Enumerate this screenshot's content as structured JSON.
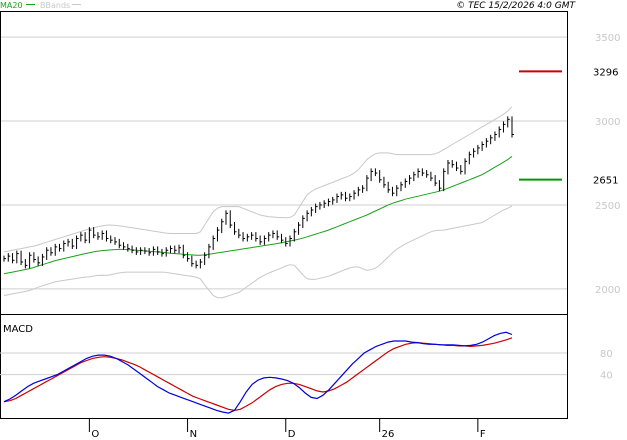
{
  "chart_data": {
    "type": "line",
    "copyright": "© TEC 15/2/2026 4:0 GMT",
    "legend": [
      {
        "name": "MA20",
        "color": "#1aa31a"
      },
      {
        "name": "BBands",
        "color": "#c8c8c8"
      }
    ],
    "price_panel": {
      "ylim": [
        1850,
        3650
      ],
      "y_ticks": [
        2000,
        2500,
        3000,
        3500
      ],
      "y_tick_labels": [
        "2000",
        "2500",
        "3000",
        "3500"
      ],
      "x_tick_labels": [
        "O",
        "N",
        "D",
        "26",
        "F"
      ],
      "x_tick_positions": [
        20,
        43,
        66,
        88,
        111
      ],
      "num_bars": 120,
      "price": [
        2180,
        2195,
        2170,
        2210,
        2160,
        2140,
        2200,
        2175,
        2155,
        2190,
        2230,
        2215,
        2250,
        2240,
        2270,
        2280,
        2255,
        2300,
        2320,
        2290,
        2350,
        2320,
        2310,
        2330,
        2300,
        2290,
        2280,
        2260,
        2250,
        2240,
        2230,
        2220,
        2230,
        2225,
        2215,
        2235,
        2220,
        2210,
        2230,
        2240,
        2230,
        2245,
        2200,
        2180,
        2150,
        2140,
        2160,
        2200,
        2250,
        2300,
        2350,
        2400,
        2450,
        2380,
        2340,
        2320,
        2300,
        2310,
        2320,
        2300,
        2280,
        2300,
        2320,
        2330,
        2310,
        2290,
        2270,
        2300,
        2340,
        2380,
        2420,
        2450,
        2470,
        2490,
        2500,
        2510,
        2520,
        2530,
        2550,
        2560,
        2540,
        2550,
        2570,
        2590,
        2600,
        2660,
        2700,
        2690,
        2650,
        2620,
        2590,
        2570,
        2600,
        2620,
        2640,
        2660,
        2680,
        2700,
        2690,
        2680,
        2660,
        2630,
        2600,
        2700,
        2750,
        2740,
        2720,
        2700,
        2760,
        2800,
        2820,
        2840,
        2860,
        2880,
        2900,
        2920,
        2950,
        2980,
        3010,
        2920
      ],
      "ma20": [
        2090,
        2095,
        2100,
        2105,
        2110,
        2115,
        2120,
        2128,
        2136,
        2144,
        2152,
        2160,
        2168,
        2174,
        2180,
        2186,
        2192,
        2198,
        2204,
        2210,
        2215,
        2220,
        2225,
        2228,
        2230,
        2232,
        2234,
        2235,
        2235,
        2234,
        2232,
        2230,
        2228,
        2226,
        2224,
        2222,
        2220,
        2218,
        2215,
        2212,
        2210,
        2208,
        2206,
        2204,
        2202,
        2200,
        2200,
        2202,
        2206,
        2210,
        2214,
        2218,
        2222,
        2226,
        2230,
        2234,
        2238,
        2242,
        2246,
        2250,
        2254,
        2258,
        2262,
        2266,
        2270,
        2275,
        2280,
        2285,
        2290,
        2296,
        2302,
        2310,
        2318,
        2326,
        2334,
        2342,
        2350,
        2360,
        2370,
        2380,
        2390,
        2400,
        2410,
        2420,
        2430,
        2440,
        2452,
        2464,
        2476,
        2488,
        2500,
        2510,
        2518,
        2526,
        2534,
        2540,
        2546,
        2552,
        2558,
        2564,
        2570,
        2576,
        2582,
        2590,
        2600,
        2610,
        2620,
        2630,
        2640,
        2650,
        2660,
        2670,
        2680,
        2695,
        2710,
        2725,
        2740,
        2755,
        2770,
        2790
      ],
      "bb_upper": [
        2220,
        2225,
        2230,
        2235,
        2240,
        2245,
        2250,
        2255,
        2262,
        2270,
        2278,
        2286,
        2294,
        2302,
        2310,
        2318,
        2326,
        2334,
        2342,
        2350,
        2358,
        2364,
        2370,
        2375,
        2380,
        2380,
        2378,
        2375,
        2372,
        2368,
        2364,
        2360,
        2356,
        2352,
        2348,
        2344,
        2340,
        2336,
        2332,
        2330,
        2330,
        2330,
        2330,
        2330,
        2330,
        2330,
        2340,
        2380,
        2420,
        2460,
        2480,
        2490,
        2490,
        2490,
        2490,
        2490,
        2480,
        2470,
        2460,
        2450,
        2440,
        2435,
        2430,
        2428,
        2426,
        2425,
        2424,
        2426,
        2440,
        2480,
        2520,
        2560,
        2580,
        2595,
        2605,
        2615,
        2625,
        2635,
        2645,
        2655,
        2665,
        2675,
        2690,
        2710,
        2740,
        2770,
        2790,
        2805,
        2810,
        2810,
        2810,
        2805,
        2800,
        2800,
        2800,
        2800,
        2800,
        2800,
        2800,
        2800,
        2800,
        2805,
        2815,
        2830,
        2845,
        2860,
        2875,
        2890,
        2905,
        2920,
        2935,
        2950,
        2965,
        2980,
        2995,
        3010,
        3025,
        3040,
        3060,
        3085
      ],
      "bb_lower": [
        1960,
        1965,
        1970,
        1975,
        1980,
        1985,
        1990,
        2000,
        2010,
        2018,
        2026,
        2034,
        2042,
        2046,
        2050,
        2054,
        2058,
        2062,
        2066,
        2070,
        2072,
        2076,
        2080,
        2081,
        2080,
        2084,
        2090,
        2095,
        2098,
        2100,
        2100,
        2100,
        2100,
        2100,
        2100,
        2100,
        2100,
        2100,
        2098,
        2094,
        2090,
        2086,
        2082,
        2078,
        2074,
        2070,
        2060,
        2024,
        1992,
        1960,
        1948,
        1946,
        1954,
        1962,
        1970,
        1978,
        1996,
        2014,
        2032,
        2050,
        2068,
        2081,
        2094,
        2104,
        2114,
        2125,
        2136,
        2144,
        2140,
        2112,
        2084,
        2060,
        2056,
        2057,
        2063,
        2069,
        2075,
        2085,
        2095,
        2105,
        2115,
        2125,
        2130,
        2130,
        2120,
        2110,
        2114,
        2123,
        2142,
        2166,
        2190,
        2215,
        2236,
        2252,
        2268,
        2280,
        2292,
        2304,
        2316,
        2328,
        2340,
        2347,
        2349,
        2350,
        2355,
        2360,
        2365,
        2370,
        2375,
        2380,
        2385,
        2390,
        2395,
        2410,
        2425,
        2440,
        2455,
        2470,
        2480,
        2495
      ]
    },
    "levels": [
      {
        "label": "3296",
        "value": 3296,
        "color": "#cc0000"
      },
      {
        "label": "2651",
        "value": 2651,
        "color": "#009900"
      }
    ],
    "macd_panel": {
      "title": "MACD",
      "ylim": [
        -40,
        150
      ],
      "y_ticks": [
        40,
        80
      ],
      "y_tick_labels": [
        "40",
        "80"
      ],
      "macd": [
        -10,
        -5,
        2,
        10,
        18,
        24,
        28,
        32,
        36,
        40,
        46,
        52,
        58,
        64,
        70,
        74,
        76,
        76,
        74,
        70,
        64,
        58,
        50,
        42,
        34,
        26,
        18,
        12,
        6,
        2,
        -2,
        -6,
        -10,
        -14,
        -18,
        -22,
        -26,
        -29,
        -31,
        -26,
        -10,
        8,
        22,
        30,
        34,
        35,
        34,
        32,
        29,
        24,
        16,
        6,
        -2,
        -4,
        2,
        12,
        24,
        36,
        48,
        60,
        70,
        80,
        86,
        92,
        96,
        100,
        102,
        102,
        102,
        100,
        99,
        97,
        96,
        96,
        95,
        95,
        95,
        94,
        93,
        94,
        96,
        100,
        106,
        112,
        116,
        118,
        114
      ],
      "signal": [
        -10,
        -8,
        -4,
        2,
        8,
        14,
        20,
        26,
        32,
        38,
        44,
        50,
        56,
        62,
        66,
        70,
        72,
        73,
        72,
        70,
        67,
        63,
        59,
        54,
        48,
        42,
        36,
        30,
        24,
        18,
        12,
        6,
        0,
        -4,
        -8,
        -12,
        -16,
        -20,
        -24,
        -26,
        -24,
        -18,
        -12,
        -4,
        4,
        12,
        18,
        22,
        24,
        24,
        22,
        18,
        14,
        10,
        8,
        10,
        14,
        20,
        26,
        34,
        42,
        50,
        58,
        66,
        74,
        82,
        88,
        92,
        96,
        98,
        99,
        98,
        97,
        96,
        95,
        94,
        94,
        93,
        93,
        92,
        93,
        94,
        96,
        98,
        101,
        104,
        108
      ]
    }
  }
}
